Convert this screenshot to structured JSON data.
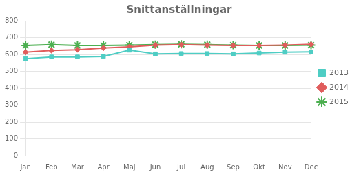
{
  "chart_data": {
    "type": "line",
    "title": "Snittanställningar",
    "categories": [
      "Jan",
      "Feb",
      "Mar",
      "Apr",
      "Maj",
      "Jun",
      "Jul",
      "Aug",
      "Sep",
      "Okt",
      "Nov",
      "Dec"
    ],
    "series": [
      {
        "name": "2013",
        "color": "#4ECDC4",
        "marker": "square",
        "values": [
          575,
          585,
          585,
          588,
          625,
          603,
          605,
          605,
          603,
          608,
          613,
          615
        ]
      },
      {
        "name": "2014",
        "color": "#E05C5C",
        "marker": "diamond",
        "values": [
          613,
          623,
          628,
          638,
          645,
          655,
          658,
          655,
          653,
          653,
          655,
          660
        ]
      },
      {
        "name": "2015",
        "color": "#4CAF50",
        "marker": "star",
        "values": [
          653,
          658,
          653,
          653,
          655,
          658,
          660,
          658,
          655,
          653,
          653,
          655
        ]
      }
    ],
    "ylim": [
      0,
      800
    ],
    "yticks": [
      0,
      100,
      200,
      300,
      400,
      500,
      600,
      700,
      800
    ],
    "grid": "y",
    "legend": "right"
  }
}
